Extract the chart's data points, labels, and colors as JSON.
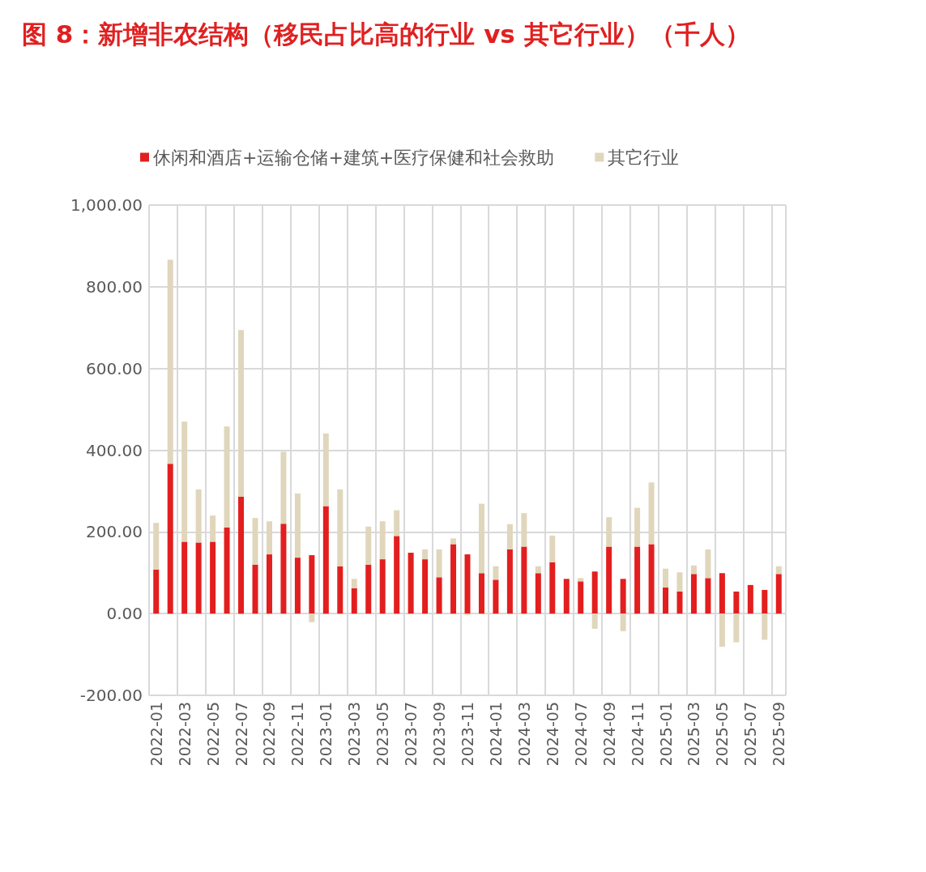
{
  "chart_data": {
    "type": "bar",
    "title": "图 8：新增非农结构（移民占比高的行业 vs 其它行业）（千人）",
    "categories": [
      "2022-01",
      null,
      "2022-03",
      null,
      "2022-05",
      null,
      "2022-07",
      null,
      "2022-09",
      null,
      "2022-11",
      null,
      "2023-01",
      null,
      "2023-03",
      null,
      "2023-05",
      null,
      "2023-07",
      null,
      "2023-09",
      null,
      "2023-11",
      null,
      "2024-01",
      null,
      "2024-03",
      null,
      "2024-05",
      null,
      "2024-07",
      null,
      "2024-09",
      null,
      "2024-11",
      null,
      "2025-01",
      null,
      "2025-03",
      null,
      "2025-05",
      null,
      "2025-07",
      null,
      "2025-09"
    ],
    "series": [
      {
        "name": "休闲和酒店+运输仓储+建筑+医疗保健和社会救助",
        "color": "#e31e1e",
        "values": [
          108,
          367,
          176,
          174,
          176,
          211,
          286,
          120,
          145,
          220,
          137,
          143,
          263,
          116,
          62,
          120,
          133,
          190,
          149,
          133,
          89,
          170,
          145,
          99,
          83,
          157,
          164,
          99,
          126,
          85,
          79,
          103,
          164,
          85,
          164,
          170,
          64,
          54,
          97,
          87,
          99,
          54,
          70,
          58,
          97
        ]
      },
      {
        "name": "其它行业",
        "color": "#e0d6bc",
        "values": [
          114,
          499,
          294,
          130,
          64,
          247,
          408,
          114,
          81,
          176,
          157,
          -21,
          178,
          188,
          23,
          93,
          93,
          63,
          0,
          24,
          68,
          14,
          -4,
          170,
          33,
          62,
          82,
          17,
          65,
          0,
          8,
          -37,
          72,
          -43,
          95,
          151,
          46,
          47,
          21,
          70,
          -81,
          -70,
          0,
          -64,
          19
        ]
      }
    ],
    "stacked": true,
    "ylim": [
      -200,
      1000
    ],
    "yticks": [
      {
        "value": -200,
        "label": "-200.00"
      },
      {
        "value": 0,
        "label": "0.00"
      },
      {
        "value": 200,
        "label": "200.00"
      },
      {
        "value": 400,
        "label": "400.00"
      },
      {
        "value": 600,
        "label": "600.00"
      },
      {
        "value": 800,
        "label": "800.00"
      },
      {
        "value": 1000,
        "label": "1,000.00"
      }
    ],
    "grid": true,
    "legend": "top"
  }
}
